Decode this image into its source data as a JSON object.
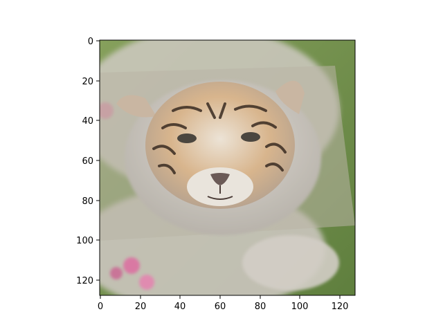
{
  "figure": {
    "background": "#ffffff",
    "axes_color": "#000000"
  },
  "image": {
    "description_free_content": true,
    "pixel_grid": [
      128,
      128
    ],
    "palette": {
      "background_grass": "#7e9a55",
      "background_grass_dark": "#5f7f3e",
      "white_fur": "#d9d4cd",
      "white_fur_shadow": "#b9b4ad",
      "tiger_orange": "#d18b4a",
      "tiger_light": "#e7c9a0",
      "stripes": "#3a2c22",
      "pink_flower": "#d980a2",
      "nose": "#6b5a56"
    }
  },
  "axes": {
    "x_ticks": [
      "0",
      "20",
      "40",
      "60",
      "80",
      "100",
      "120"
    ],
    "y_ticks": [
      "0",
      "20",
      "40",
      "60",
      "80",
      "100",
      "120"
    ],
    "x_range": [
      0,
      128
    ],
    "y_range": [
      0,
      128
    ],
    "y_inverted": true
  }
}
